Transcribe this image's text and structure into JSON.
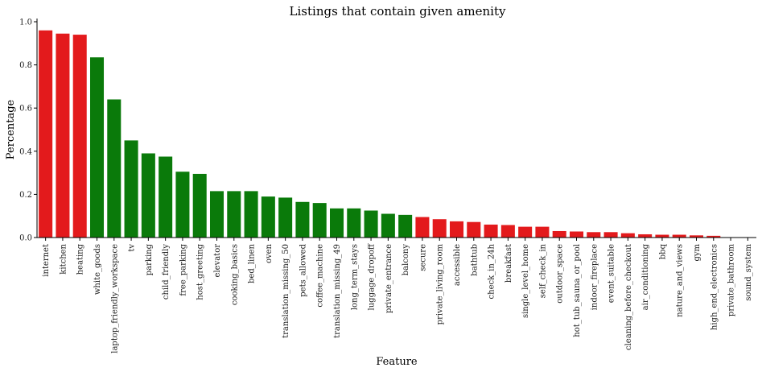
{
  "chart_data": {
    "type": "bar",
    "title": "Listings that contain given amenity",
    "xlabel": "Feature",
    "ylabel": "Percentage",
    "ylim": [
      0,
      1.0
    ],
    "yticks": [
      "0.0",
      "0.2",
      "0.4",
      "0.6",
      "0.8",
      "1.0"
    ],
    "grid": false,
    "colors": {
      "red": "#e31a1c",
      "green": "#0a7a0a"
    },
    "categories": [
      "internet",
      "kitchen",
      "heating",
      "white_goods",
      "laptop_friendly_workspace",
      "tv",
      "parking",
      "child_friendly",
      "free_parking",
      "host_greeting",
      "elevator",
      "cooking_basics",
      "bed_linen",
      "oven",
      "translation_missing_50",
      "pets_allowed",
      "coffee_machine",
      "translation_missing_49",
      "long_term_stays",
      "luggage_dropoff",
      "private_entrance",
      "balcony",
      "secure",
      "private_living_room",
      "accessible",
      "bathtub",
      "check_in_24h",
      "breakfast",
      "single_level_home",
      "self_check_in",
      "outdoor_space",
      "hot_tub_sauna_or_pool",
      "indoor_fireplace",
      "event_suitable",
      "cleaning_before_checkout",
      "air_conditioning",
      "bbq",
      "nature_and_views",
      "gym",
      "high_end_electronics",
      "private_bathroom",
      "sound_system"
    ],
    "values": [
      0.96,
      0.945,
      0.94,
      0.835,
      0.64,
      0.45,
      0.39,
      0.375,
      0.305,
      0.295,
      0.215,
      0.215,
      0.215,
      0.19,
      0.185,
      0.165,
      0.16,
      0.135,
      0.135,
      0.125,
      0.11,
      0.105,
      0.095,
      0.085,
      0.075,
      0.072,
      0.06,
      0.058,
      0.05,
      0.05,
      0.03,
      0.028,
      0.025,
      0.025,
      0.02,
      0.015,
      0.013,
      0.013,
      0.01,
      0.008,
      0.0,
      0.0
    ],
    "bar_colors": [
      "red",
      "red",
      "red",
      "green",
      "green",
      "green",
      "green",
      "green",
      "green",
      "green",
      "green",
      "green",
      "green",
      "green",
      "green",
      "green",
      "green",
      "green",
      "green",
      "green",
      "green",
      "green",
      "red",
      "red",
      "red",
      "red",
      "red",
      "red",
      "red",
      "red",
      "red",
      "red",
      "red",
      "red",
      "red",
      "red",
      "red",
      "red",
      "red",
      "red",
      "red",
      "red"
    ]
  }
}
